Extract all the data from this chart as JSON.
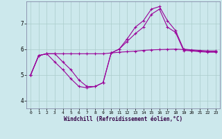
{
  "xlabel": "Windchill (Refroidissement éolien,°C)",
  "background_color": "#cce8ec",
  "grid_color": "#aacccc",
  "line_color": "#990099",
  "x_ticks": [
    0,
    1,
    2,
    3,
    4,
    5,
    6,
    7,
    8,
    9,
    10,
    11,
    12,
    13,
    14,
    15,
    16,
    17,
    18,
    19,
    20,
    21,
    22,
    23
  ],
  "y_ticks": [
    4,
    5,
    6,
    7
  ],
  "xlim": [
    -0.5,
    23.5
  ],
  "ylim": [
    3.7,
    7.85
  ],
  "series": [
    {
      "x": [
        0,
        1,
        2,
        3,
        4,
        5,
        6,
        7,
        8,
        9,
        10,
        11,
        12,
        13,
        14,
        15,
        16,
        17,
        18,
        19,
        20,
        21,
        22,
        23
      ],
      "y": [
        5.0,
        5.75,
        5.82,
        5.82,
        5.82,
        5.82,
        5.82,
        5.82,
        5.82,
        5.82,
        5.85,
        5.88,
        5.9,
        5.92,
        5.95,
        5.97,
        5.98,
        5.99,
        6.0,
        5.98,
        5.95,
        5.92,
        5.9,
        5.9
      ],
      "marker": "+"
    },
    {
      "x": [
        0,
        1,
        2,
        3,
        4,
        5,
        6,
        7,
        8,
        9,
        10,
        11,
        12,
        13,
        14,
        15,
        16,
        17,
        18,
        19,
        20,
        21,
        22,
        23
      ],
      "y": [
        5.0,
        5.75,
        5.82,
        5.82,
        5.5,
        5.2,
        4.8,
        4.55,
        4.55,
        4.7,
        5.85,
        6.0,
        6.3,
        6.6,
        6.85,
        7.35,
        7.55,
        6.85,
        6.65,
        5.95,
        5.93,
        5.9,
        5.88,
        5.88
      ],
      "marker": "+"
    },
    {
      "x": [
        0,
        1,
        2,
        3,
        4,
        5,
        6,
        7,
        8,
        9,
        10,
        11,
        12,
        13,
        14,
        15,
        16,
        17,
        18,
        19,
        20,
        21,
        22,
        23
      ],
      "y": [
        5.0,
        5.75,
        5.82,
        5.5,
        5.2,
        4.85,
        4.55,
        4.5,
        4.55,
        4.7,
        5.85,
        6.0,
        6.4,
        6.85,
        7.1,
        7.55,
        7.65,
        7.1,
        6.72,
        6.0,
        5.97,
        5.95,
        5.93,
        5.93
      ],
      "marker": "+"
    }
  ]
}
